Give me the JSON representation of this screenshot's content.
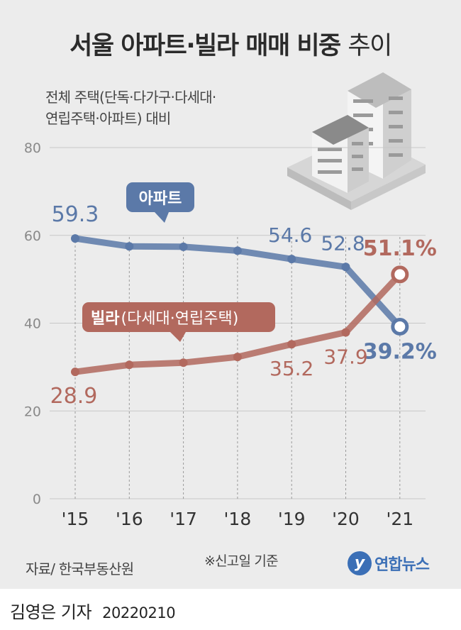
{
  "title": {
    "bold": "서울 아파트·빌라 매매 비중",
    "light": "추이"
  },
  "subtitle": {
    "line1": "전체 주택(단독·다가구·다세대·",
    "line2": "연립주택·아파트) 대비"
  },
  "chart_data": {
    "type": "line",
    "title": "서울 아파트·빌라 매매 비중 추이",
    "categories": [
      "'15",
      "'16",
      "'17",
      "'18",
      "'19",
      "'20",
      "'21"
    ],
    "y_ticks": [
      "80",
      "60",
      "40",
      "20",
      "0"
    ],
    "ylim": [
      0,
      80
    ],
    "grid": "vertical dashed",
    "series": [
      {
        "name": "아파트",
        "color": "#5b79a8",
        "values": [
          59.3,
          57.5,
          57.4,
          56.5,
          54.6,
          52.8,
          39.2
        ],
        "labels": [
          "59.3",
          null,
          null,
          null,
          "54.6",
          "52.8",
          "39.2%"
        ]
      },
      {
        "name": "빌라(다세대·연립주택)",
        "color": "#b2695e",
        "values": [
          28.9,
          30.5,
          31.0,
          32.3,
          35.2,
          37.9,
          51.1
        ],
        "labels": [
          "28.9",
          null,
          null,
          null,
          "35.2",
          "37.9",
          "51.1%"
        ]
      }
    ]
  },
  "legend": {
    "apt": "아파트",
    "villa_bold": "빌라",
    "villa_rest": "(다세대·연립주택)"
  },
  "source": "자료/ 한국부동산원",
  "note": "※신고일 기준",
  "logo": {
    "mark": "y",
    "text": "연합뉴스"
  },
  "byline": {
    "name": "김영은 기자",
    "date": "20220210"
  }
}
